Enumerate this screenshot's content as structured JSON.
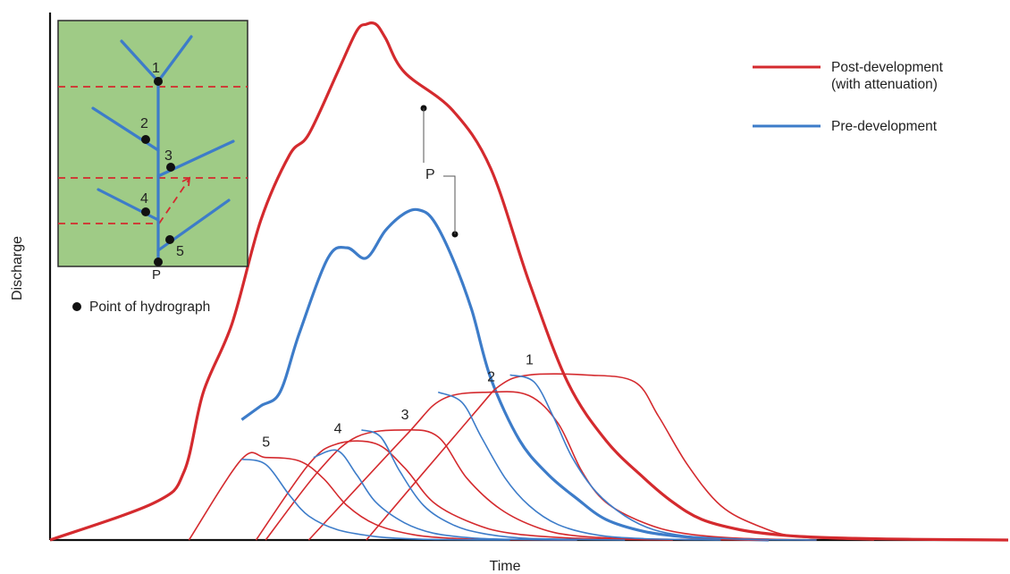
{
  "chart_data": {
    "type": "line",
    "xlabel": "Time",
    "ylabel": "Discharge",
    "legend": {
      "placement": "top-right",
      "entries": [
        {
          "label_line1": "Post-development",
          "label_line2": "(with attenuation)",
          "color": "#d42a2e"
        },
        {
          "label_line1": "Pre-development",
          "label_line2": "",
          "color": "#3d7cc9"
        }
      ]
    },
    "colors": {
      "post": "#d42a2e",
      "pre": "#3d7cc9",
      "map_bg": "#9fcb86"
    },
    "peak_label": "P",
    "series": [
      {
        "name": "Post-development",
        "x": [
          0,
          11,
          14,
          16,
          19,
          22,
          25,
          27,
          30,
          32,
          33,
          34,
          35,
          37,
          42,
          46,
          50,
          54,
          58,
          62,
          65,
          68,
          72,
          76,
          80,
          84,
          90,
          95,
          100
        ],
        "y": [
          0,
          1.1,
          2.0,
          4.3,
          6.3,
          9.3,
          11.2,
          11.8,
          13.6,
          14.8,
          15.0,
          15.0,
          14.6,
          13.6,
          12.5,
          10.8,
          7.5,
          4.6,
          2.9,
          1.8,
          1.1,
          0.6,
          0.3,
          0.15,
          0.08,
          0.05,
          0.02,
          0.01,
          0
        ]
      },
      {
        "name": "Pre-development",
        "x": [
          20,
          22,
          24,
          26,
          29,
          31,
          33,
          35,
          37,
          38.5,
          40,
          42,
          44,
          46,
          49,
          52,
          55,
          58,
          62,
          66,
          70,
          75
        ],
        "y": [
          3.5,
          3.9,
          4.3,
          6.0,
          8.2,
          8.5,
          8.2,
          9.0,
          9.5,
          9.6,
          9.3,
          8.2,
          6.7,
          4.7,
          2.9,
          1.9,
          1.2,
          0.6,
          0.25,
          0.1,
          0.04,
          0
        ]
      },
      {
        "name": "",
        "x": [
          14.5,
          20,
          22.5,
          26,
          28.5,
          31,
          34,
          38,
          42,
          46,
          55
        ],
        "y": [
          0,
          2.35,
          2.4,
          2.3,
          1.8,
          1.0,
          0.45,
          0.15,
          0.05,
          0.01,
          0
        ],
        "label": "5"
      },
      {
        "name": "",
        "x": [
          21.5,
          27,
          30,
          34,
          37,
          40,
          44,
          48,
          55,
          65
        ],
        "y": [
          0,
          2.2,
          2.8,
          2.8,
          2.1,
          1.1,
          0.5,
          0.2,
          0.05,
          0
        ],
        "label": "4"
      },
      {
        "name": "",
        "x": [
          22.5,
          28,
          32,
          37,
          40.5,
          43.5,
          47,
          51,
          55,
          62,
          75
        ],
        "y": [
          0,
          2.0,
          3.0,
          3.2,
          3.0,
          1.8,
          0.9,
          0.35,
          0.12,
          0.03,
          0
        ],
        "label": "3"
      },
      {
        "name": "",
        "x": [
          27,
          37,
          41,
          46,
          50,
          53,
          55.5,
          58,
          62,
          66,
          72,
          80
        ],
        "y": [
          0,
          3.0,
          4.1,
          4.3,
          4.2,
          3.4,
          2.0,
          1.1,
          0.5,
          0.2,
          0.05,
          0
        ],
        "label": "2"
      },
      {
        "name": "",
        "x": [
          33,
          44,
          47,
          50,
          56,
          61,
          63.5,
          66.5,
          70,
          74,
          78,
          86
        ],
        "y": [
          0,
          3.6,
          4.5,
          4.8,
          4.8,
          4.6,
          3.6,
          2.2,
          1.0,
          0.4,
          0.1,
          0
        ],
        "label": "1"
      },
      {
        "name": "",
        "x": [
          20,
          22.5,
          25,
          27,
          30,
          34,
          38,
          42,
          48
        ],
        "y": [
          2.35,
          2.2,
          1.3,
          0.7,
          0.3,
          0.1,
          0.03,
          0.01,
          0
        ]
      },
      {
        "name": "",
        "x": [
          27.5,
          30,
          32,
          34,
          37,
          40,
          44,
          48,
          55
        ],
        "y": [
          2.4,
          2.6,
          1.9,
          1.1,
          0.5,
          0.2,
          0.06,
          0.02,
          0
        ]
      },
      {
        "name": "",
        "x": [
          32.5,
          34.5,
          36.5,
          39,
          42,
          45,
          49,
          54,
          60
        ],
        "y": [
          3.2,
          3.0,
          2.0,
          1.0,
          0.45,
          0.2,
          0.06,
          0.02,
          0
        ]
      },
      {
        "name": "",
        "x": [
          40.5,
          43,
          45,
          47.5,
          50,
          53,
          57,
          62,
          70
        ],
        "y": [
          4.3,
          4.0,
          3.0,
          1.8,
          1.0,
          0.45,
          0.15,
          0.04,
          0
        ]
      },
      {
        "name": "",
        "x": [
          48,
          50.5,
          52.5,
          54.5,
          57,
          60,
          63,
          67,
          73,
          80
        ],
        "y": [
          4.8,
          4.6,
          3.6,
          2.4,
          1.4,
          0.7,
          0.3,
          0.1,
          0.02,
          0
        ]
      }
    ],
    "inset_map": {
      "outlet_label": "P",
      "point_labels": [
        "1",
        "2",
        "3",
        "4",
        "5"
      ],
      "legend_text": "Point of hydrograph"
    }
  }
}
